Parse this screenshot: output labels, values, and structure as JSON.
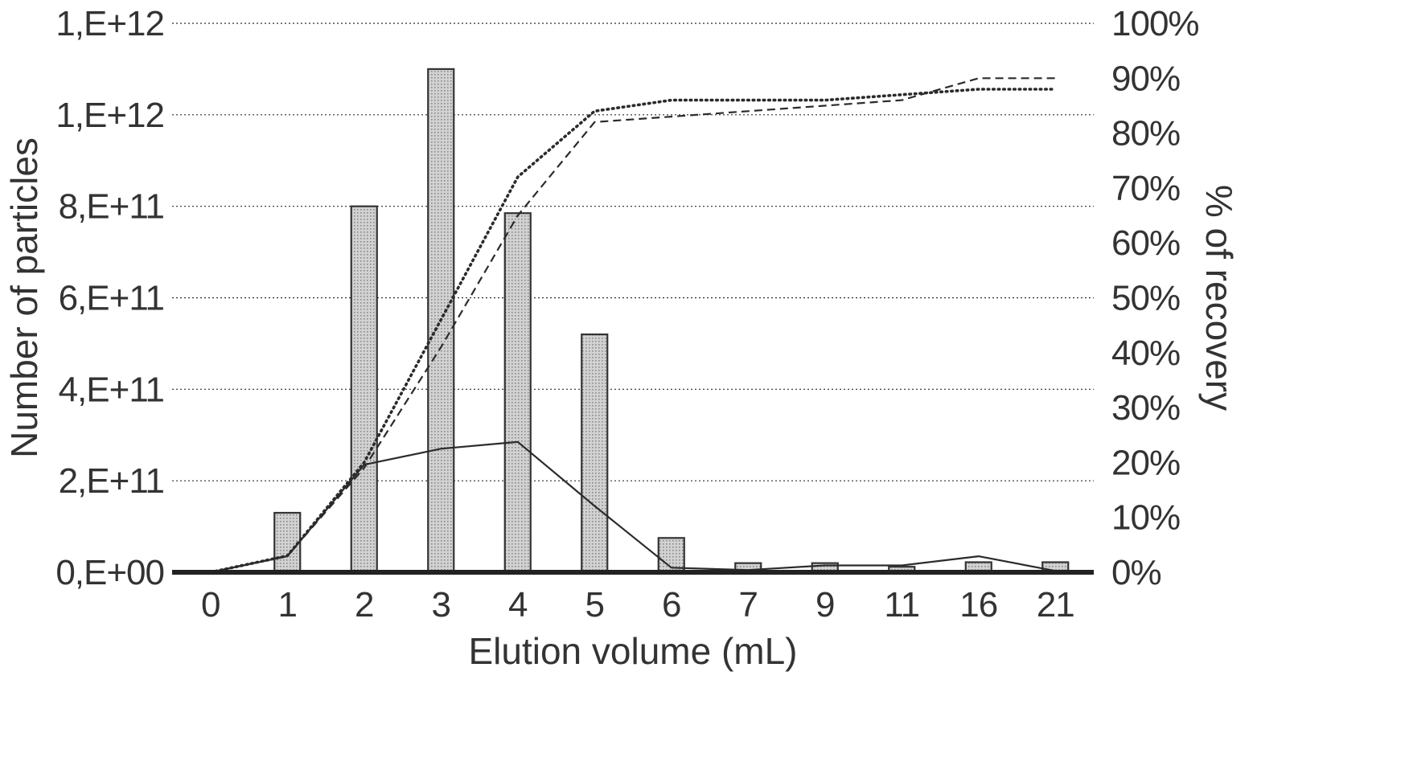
{
  "chart_data": {
    "type": "bar",
    "xlabel": "Elution volume (mL)",
    "ylabel": "Number of particles",
    "ylabel_right": "% of recovery",
    "categories": [
      "0",
      "1",
      "2",
      "3",
      "4",
      "5",
      "6",
      "7",
      "9",
      "11",
      "16",
      "21"
    ],
    "ylim": [
      0,
      1200000000000
    ],
    "y_ticks": [
      "0,E+00",
      "2,E+11",
      "4,E+11",
      "6,E+11",
      "8,E+11",
      "1,E+12",
      "1,E+12"
    ],
    "y2lim": [
      0,
      100
    ],
    "y2_ticks": [
      "0%",
      "10%",
      "20%",
      "30%",
      "40%",
      "50%",
      "60%",
      "70%",
      "80%",
      "90%",
      "100%"
    ],
    "grid": true,
    "bars": {
      "values": [
        0,
        130000000000,
        800000000000,
        1100000000000,
        785000000000,
        520000000000,
        75000000000,
        20000000000,
        20000000000,
        12000000000,
        22000000000,
        22000000000
      ],
      "fill": "#c8c8c8"
    },
    "lines": [
      {
        "axis": "left",
        "style": "solid",
        "values": [
          0,
          35000000000,
          235000000000,
          270000000000,
          285000000000,
          145000000000,
          10000000000,
          5000000000,
          15000000000,
          15000000000,
          35000000000,
          3000000000
        ]
      },
      {
        "axis": "right",
        "style": "dashed",
        "values": [
          0,
          3,
          19,
          41,
          65,
          82,
          83,
          84,
          85,
          86,
          90,
          90
        ]
      },
      {
        "axis": "right",
        "style": "dotted",
        "values": [
          0,
          3,
          20,
          46,
          72,
          84,
          86,
          86,
          86,
          87,
          88,
          88
        ]
      }
    ]
  }
}
